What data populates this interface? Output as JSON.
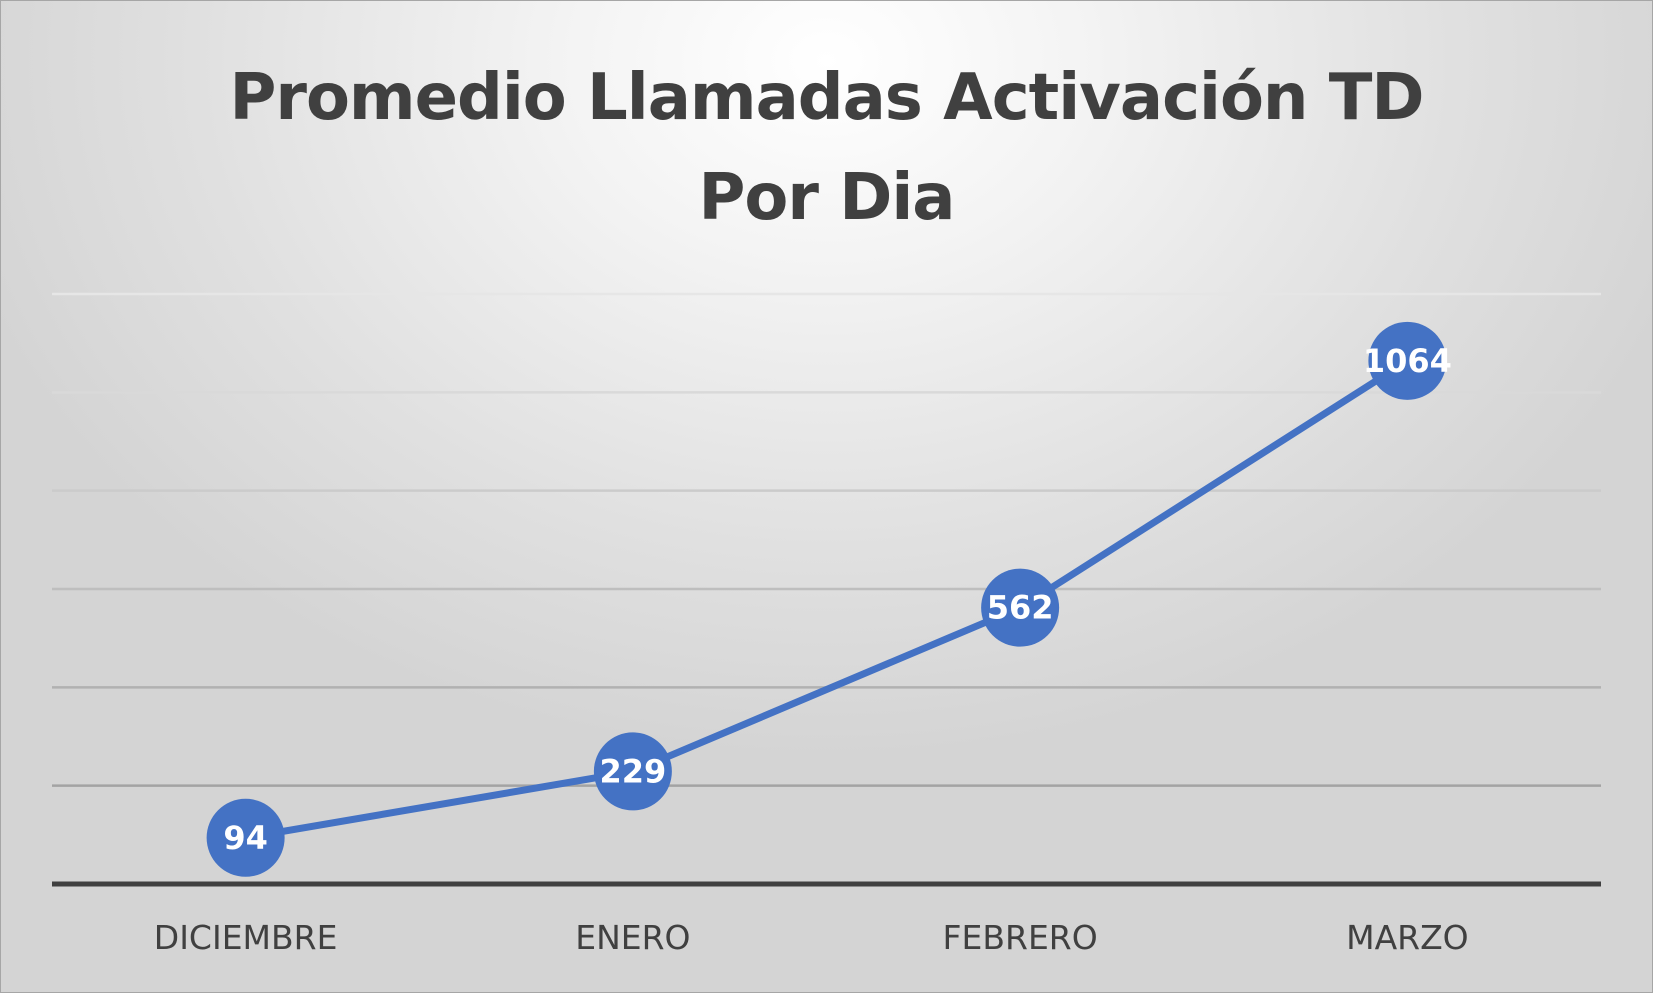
{
  "chart_data": {
    "type": "line",
    "title": [
      "Promedio Llamadas Activación TD",
      "Por Dia"
    ],
    "categories": [
      "DICIEMBRE",
      "ENERO",
      "FEBRERO",
      "MARZO"
    ],
    "series": [
      {
        "values": [
          94,
          229,
          562,
          1064
        ]
      }
    ],
    "ylim": [
      0,
      1200
    ],
    "ytick_step": 200,
    "grid": true,
    "y_axis_labels_shown": false,
    "legend": "none",
    "data_labels": "center",
    "colors": {
      "line": "#4472C4",
      "marker": "#4472C4",
      "data_label": "#FFFFFF",
      "gridline": "#BFBFBF",
      "axis_line": "#404040",
      "text": "#404040"
    }
  }
}
